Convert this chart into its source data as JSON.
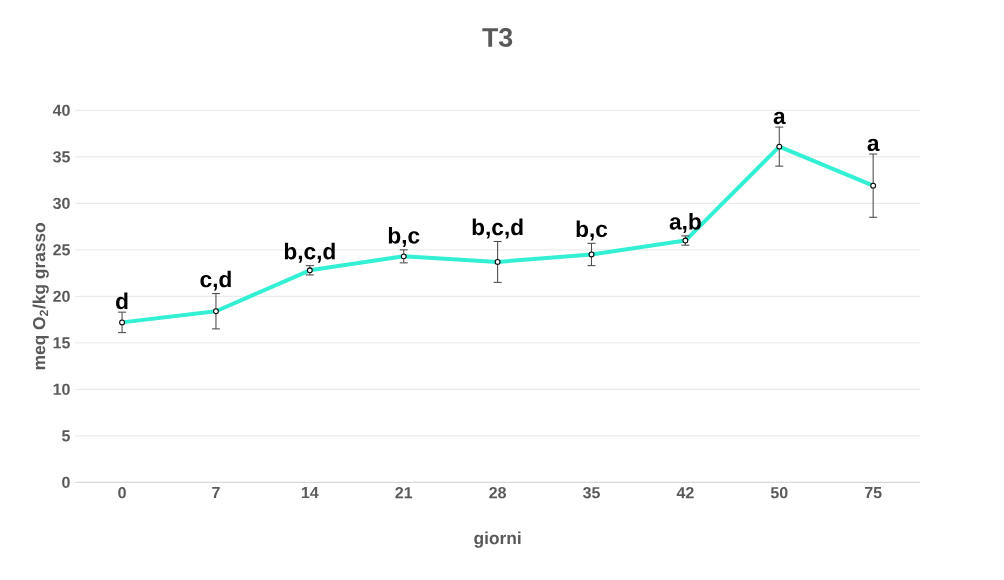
{
  "chart_data": {
    "type": "line",
    "title": "T3",
    "xlabel": "giorni",
    "ylabel": "meq O$_{2}$/kg grasso",
    "categories": [
      "0",
      "7",
      "14",
      "21",
      "28",
      "35",
      "42",
      "50",
      "75"
    ],
    "series": [
      {
        "color": "#33efd3",
        "values": [
          17.2,
          18.4,
          22.8,
          24.3,
          23.7,
          24.5,
          26.0,
          36.1,
          31.9
        ],
        "errors": [
          1.1,
          1.9,
          0.5,
          0.7,
          2.2,
          1.2,
          0.5,
          2.1,
          3.4
        ]
      }
    ],
    "ylim": [
      0,
      40
    ],
    "yticks": [
      0,
      5,
      10,
      15,
      20,
      25,
      30,
      35,
      40
    ],
    "grid": "y",
    "marker": "circle",
    "line_style": "solid",
    "annotations": [
      {
        "text": "d",
        "x": "0",
        "y": 17.2
      },
      {
        "text": "c,d",
        "x": "7",
        "y": 18.4
      },
      {
        "text": "b,c,d",
        "x": "14",
        "y": 22.8
      },
      {
        "text": "b,c",
        "x": "21",
        "y": 24.3
      },
      {
        "text": "b,c,d",
        "x": "28",
        "y": 23.7
      },
      {
        "text": "b,c",
        "x": "35",
        "y": 24.5
      },
      {
        "text": "a,b",
        "x": "42",
        "y": 26.0
      },
      {
        "text": "a",
        "x": "50",
        "y": 36.1
      },
      {
        "text": "a",
        "x": "75",
        "y": 31.9
      }
    ]
  }
}
